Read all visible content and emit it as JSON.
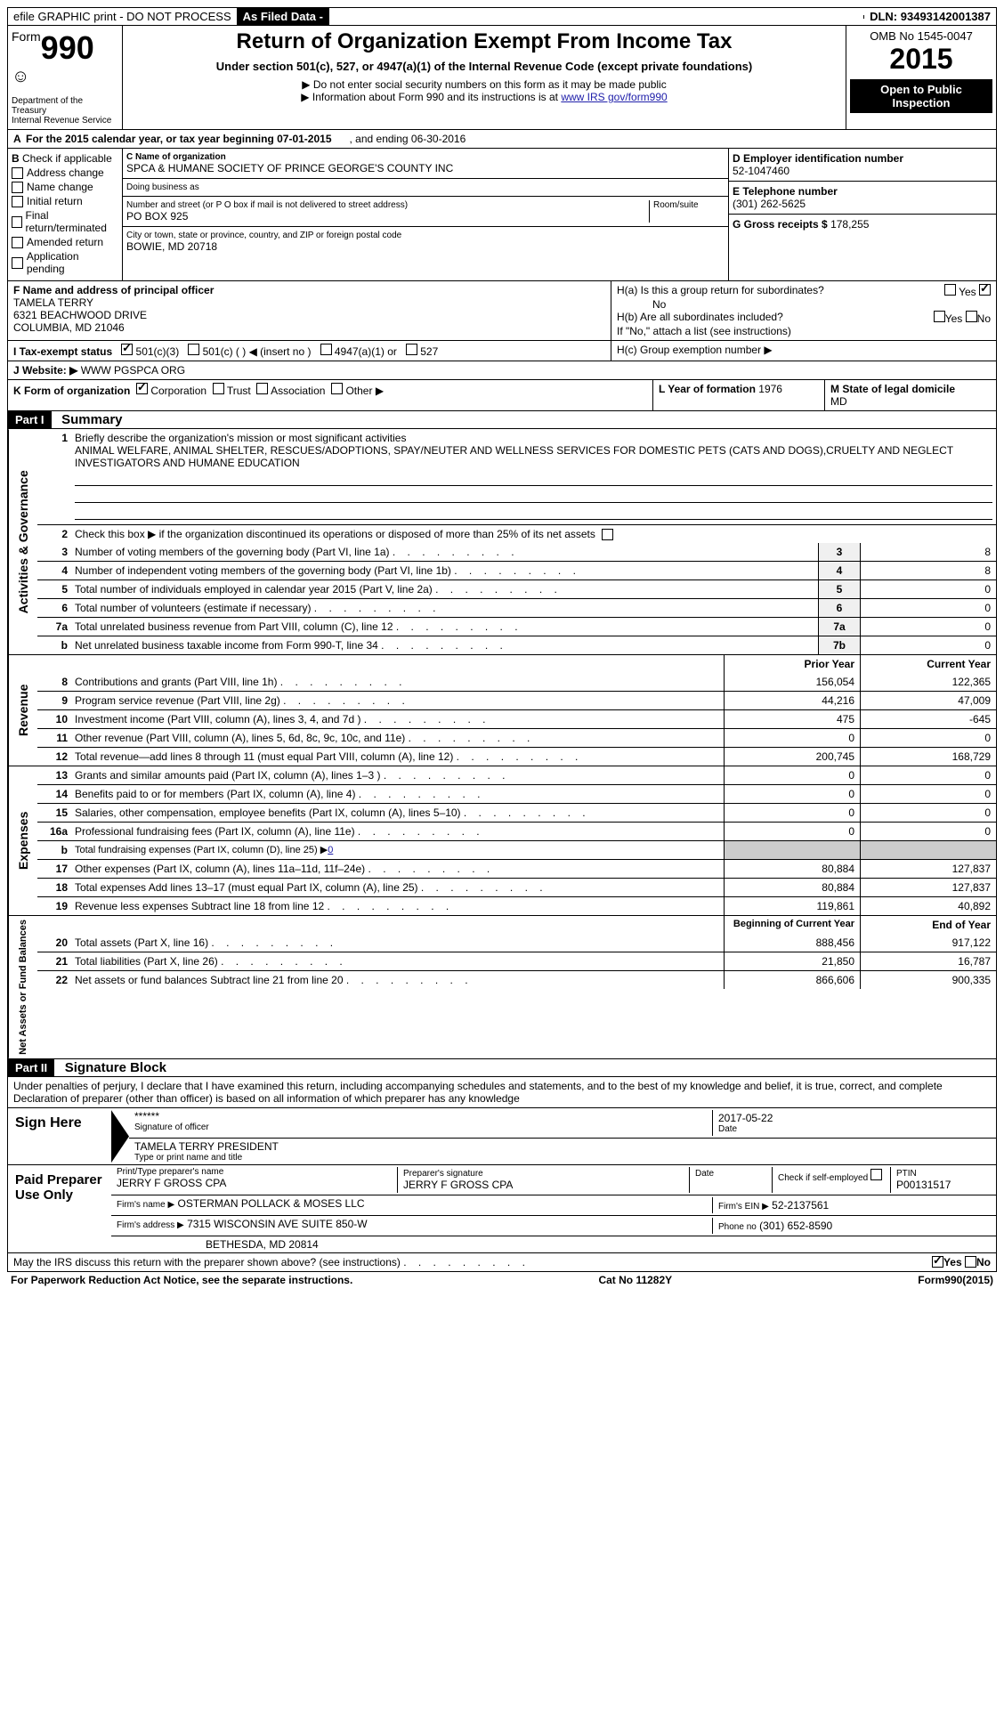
{
  "topbar": {
    "efile": "efile GRAPHIC print - DO NOT PROCESS",
    "asfiled": "As Filed Data -",
    "dln_label": "DLN:",
    "dln": "93493142001387"
  },
  "header": {
    "form_word": "Form",
    "form_num": "990",
    "dept1": "Department of the Treasury",
    "dept2": "Internal Revenue Service",
    "title": "Return of Organization Exempt From Income Tax",
    "subtitle": "Under section 501(c), 527, or 4947(a)(1) of the Internal Revenue Code (except private foundations)",
    "note1": "▶ Do not enter social security numbers on this form as it may be made public",
    "note2": "▶ Information about Form 990 and its instructions is at ",
    "link": "www IRS gov/form990",
    "omb": "OMB No 1545-0047",
    "year": "2015",
    "open": "Open to Public Inspection"
  },
  "rowA": {
    "text": "For the 2015 calendar year, or tax year beginning 07-01-2015",
    "ending": ", and ending 06-30-2016"
  },
  "colB": {
    "label": "Check if applicable",
    "items": [
      "Address change",
      "Name change",
      "Initial return",
      "Final return/terminated",
      "Amended return",
      "Application pending"
    ]
  },
  "colC": {
    "name_label": "C Name of organization",
    "name": "SPCA & HUMANE SOCIETY OF PRINCE GEORGE'S COUNTY INC",
    "dba_label": "Doing business as",
    "addr_label": "Number and street (or P O  box if mail is not delivered to street address)",
    "room_label": "Room/suite",
    "addr": "PO BOX 925",
    "city_label": "City or town, state or province, country, and ZIP or foreign postal code",
    "city": "BOWIE, MD  20718"
  },
  "colD": {
    "d_label": "D Employer identification number",
    "d_val": "52-1047460",
    "e_label": "E Telephone number",
    "e_val": "(301) 262-5625",
    "g_label": "G Gross receipts $",
    "g_val": "178,255"
  },
  "rowF": {
    "label": "F  Name and address of principal officer",
    "name": "TAMELA TERRY",
    "addr1": "6321 BEACHWOOD DRIVE",
    "addr2": "COLUMBIA, MD  21046"
  },
  "rowH": {
    "ha": "H(a)  Is this a group return for subordinates?",
    "ha_no": "No",
    "hb": "H(b)  Are all subordinates included?",
    "hb_note": "If \"No,\" attach a list  (see instructions)",
    "hc": "H(c)  Group exemption number ▶",
    "yes": "Yes",
    "no_label": "No"
  },
  "rowI": {
    "label": "I  Tax-exempt status",
    "opts": [
      "501(c)(3)",
      "501(c) (  ) ◀ (insert no )",
      "4947(a)(1) or",
      "527"
    ]
  },
  "rowJ": {
    "label": "J  Website: ▶",
    "val": "WWW PGSPCA ORG"
  },
  "rowK": {
    "label": "K Form of organization",
    "opts": [
      "Corporation",
      "Trust",
      "Association",
      "Other ▶"
    ],
    "l_label": "L Year of formation",
    "l_val": "1976",
    "m_label": "M State of legal domicile",
    "m_val": "MD"
  },
  "part1": {
    "header": "Part I",
    "title": "Summary",
    "q1": "Briefly describe the organization's mission or most significant activities",
    "mission": "ANIMAL WELFARE, ANIMAL SHELTER, RESCUES/ADOPTIONS, SPAY/NEUTER AND WELLNESS SERVICES FOR DOMESTIC PETS (CATS AND DOGS),CRUELTY AND NEGLECT INVESTIGATORS AND HUMANE EDUCATION",
    "q2": "Check this box ▶      if the organization discontinued its operations or disposed of more than 25% of its net assets",
    "lines": [
      {
        "n": "3",
        "d": "Number of voting members of the governing body (Part VI, line 1a)",
        "box": "3",
        "v": "8"
      },
      {
        "n": "4",
        "d": "Number of independent voting members of the governing body (Part VI, line 1b)",
        "box": "4",
        "v": "8"
      },
      {
        "n": "5",
        "d": "Total number of individuals employed in calendar year 2015 (Part V, line 2a)",
        "box": "5",
        "v": "0"
      },
      {
        "n": "6",
        "d": "Total number of volunteers (estimate if necessary)",
        "box": "6",
        "v": "0"
      },
      {
        "n": "7a",
        "d": "Total unrelated business revenue from Part VIII, column (C), line 12",
        "box": "7a",
        "v": "0"
      },
      {
        "n": "b",
        "d": "Net unrelated business taxable income from Form 990-T, line 34",
        "box": "7b",
        "v": "0"
      }
    ],
    "vlabel": "Activities & Governance"
  },
  "revenue": {
    "vlabel": "Revenue",
    "head_prior": "Prior Year",
    "head_curr": "Current Year",
    "lines": [
      {
        "n": "8",
        "d": "Contributions and grants (Part VIII, line 1h)",
        "p": "156,054",
        "c": "122,365"
      },
      {
        "n": "9",
        "d": "Program service revenue (Part VIII, line 2g)",
        "p": "44,216",
        "c": "47,009"
      },
      {
        "n": "10",
        "d": "Investment income (Part VIII, column (A), lines 3, 4, and 7d )",
        "p": "475",
        "c": "-645"
      },
      {
        "n": "11",
        "d": "Other revenue (Part VIII, column (A), lines 5, 6d, 8c, 9c, 10c, and 11e)",
        "p": "0",
        "c": "0"
      },
      {
        "n": "12",
        "d": "Total revenue—add lines 8 through 11 (must equal Part VIII, column (A), line 12)",
        "p": "200,745",
        "c": "168,729"
      }
    ]
  },
  "expenses": {
    "vlabel": "Expenses",
    "lines": [
      {
        "n": "13",
        "d": "Grants and similar amounts paid (Part IX, column (A), lines 1–3 )",
        "p": "0",
        "c": "0"
      },
      {
        "n": "14",
        "d": "Benefits paid to or for members (Part IX, column (A), line 4)",
        "p": "0",
        "c": "0"
      },
      {
        "n": "15",
        "d": "Salaries, other compensation, employee benefits (Part IX, column (A), lines 5–10)",
        "p": "0",
        "c": "0"
      },
      {
        "n": "16a",
        "d": "Professional fundraising fees (Part IX, column (A), line 11e)",
        "p": "0",
        "c": "0"
      },
      {
        "n": "b",
        "d": "Total fundraising expenses (Part IX, column (D), line 25) ▶",
        "p": "",
        "c": "",
        "extra": "0"
      },
      {
        "n": "17",
        "d": "Other expenses (Part IX, column (A), lines 11a–11d, 11f–24e)",
        "p": "80,884",
        "c": "127,837"
      },
      {
        "n": "18",
        "d": "Total expenses  Add lines 13–17 (must equal Part IX, column (A), line 25)",
        "p": "80,884",
        "c": "127,837"
      },
      {
        "n": "19",
        "d": "Revenue less expenses  Subtract line 18 from line 12",
        "p": "119,861",
        "c": "40,892"
      }
    ]
  },
  "netassets": {
    "vlabel": "Net Assets or Fund Balances",
    "head_beg": "Beginning of Current Year",
    "head_end": "End of Year",
    "lines": [
      {
        "n": "20",
        "d": "Total assets (Part X, line 16)",
        "p": "888,456",
        "c": "917,122"
      },
      {
        "n": "21",
        "d": "Total liabilities (Part X, line 26)",
        "p": "21,850",
        "c": "16,787"
      },
      {
        "n": "22",
        "d": "Net assets or fund balances  Subtract line 21 from line 20",
        "p": "866,606",
        "c": "900,335"
      }
    ]
  },
  "part2": {
    "header": "Part II",
    "title": "Signature Block",
    "decl": "Under penalties of perjury, I declare that I have examined this return, including accompanying schedules and statements, and to the best of my knowledge and belief, it is true, correct, and complete  Declaration of preparer (other than officer) is based on all information of which preparer has any knowledge"
  },
  "sign": {
    "label": "Sign Here",
    "sig_stars": "******",
    "sig_of": "Signature of officer",
    "date": "2017-05-22",
    "date_label": "Date",
    "name": "TAMELA TERRY PRESIDENT",
    "name_label": "Type or print name and title"
  },
  "paid": {
    "label": "Paid Preparer Use Only",
    "r1": {
      "a_label": "Print/Type preparer's name",
      "a": "JERRY F GROSS CPA",
      "b_label": "Preparer's signature",
      "b": "JERRY F GROSS CPA",
      "c_label": "Date",
      "c": "",
      "d_label": "Check        if self-employed",
      "e_label": "PTIN",
      "e": "P00131517"
    },
    "r2": {
      "a_label": "Firm's name     ▶",
      "a": "OSTERMAN POLLACK & MOSES LLC",
      "b_label": "Firm's EIN ▶",
      "b": "52-2137561"
    },
    "r3": {
      "a_label": "Firm's address ▶",
      "a": "7315 WISCONSIN AVE SUITE 850-W",
      "b_label": "Phone no",
      "b": "(301) 652-8590"
    },
    "r4": {
      "a": "BETHESDA, MD  20814"
    }
  },
  "bottom": {
    "q": "May the IRS discuss this return with the preparer shown above? (see instructions)",
    "yes": "Yes",
    "no": "No",
    "paperwork": "For Paperwork Reduction Act Notice, see the separate instructions.",
    "cat": "Cat No  11282Y",
    "form": "Form",
    "formnum": "990",
    "formyear": "(2015)"
  }
}
